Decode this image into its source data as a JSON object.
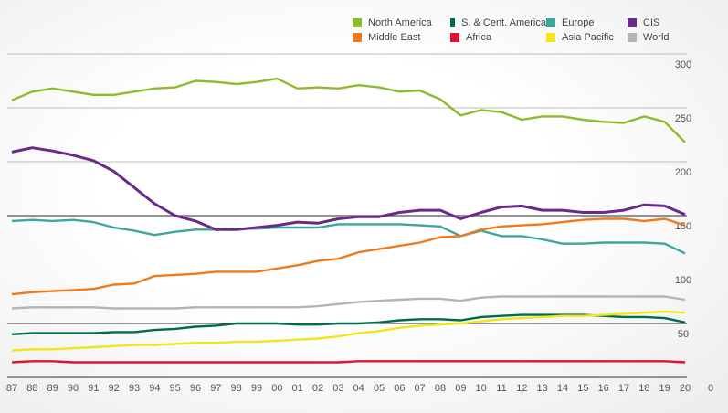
{
  "chart_data": {
    "type": "line",
    "x": [
      "87",
      "88",
      "89",
      "90",
      "91",
      "92",
      "93",
      "94",
      "95",
      "96",
      "97",
      "98",
      "99",
      "00",
      "01",
      "02",
      "03",
      "04",
      "05",
      "06",
      "07",
      "08",
      "09",
      "10",
      "11",
      "12",
      "13",
      "14",
      "15",
      "16",
      "17",
      "18",
      "19",
      "20"
    ],
    "x_end_label": "0",
    "ylim": [
      0,
      300
    ],
    "yticks": [
      50,
      100,
      150,
      200,
      250,
      300
    ],
    "y_axis_side": "right",
    "grid": true,
    "legend_position": "top-right",
    "series": [
      {
        "name": "North America",
        "color": "#8dbb2c",
        "values": [
          257,
          265,
          268,
          265,
          262,
          262,
          265,
          268,
          269,
          275,
          274,
          272,
          274,
          277,
          268,
          269,
          268,
          271,
          269,
          265,
          266,
          258,
          243,
          248,
          246,
          239,
          242,
          242,
          239,
          237,
          236,
          242,
          237,
          218
        ]
      },
      {
        "name": "S. & Cent. America",
        "color": "#006a4e",
        "values": [
          40,
          41,
          41,
          41,
          41,
          42,
          42,
          44,
          45,
          47,
          48,
          50,
          50,
          50,
          49,
          49,
          50,
          50,
          51,
          53,
          54,
          54,
          53,
          56,
          57,
          58,
          58,
          58,
          58,
          57,
          56,
          56,
          55,
          51
        ]
      },
      {
        "name": "Europe",
        "color": "#3ba89a",
        "values": [
          145,
          146,
          145,
          146,
          144,
          139,
          136,
          132,
          135,
          137,
          137,
          138,
          138,
          139,
          139,
          139,
          142,
          142,
          142,
          142,
          141,
          140,
          131,
          136,
          131,
          131,
          128,
          124,
          124,
          125,
          125,
          125,
          124,
          115
        ]
      },
      {
        "name": "CIS",
        "color": "#6a2a8a",
        "values": [
          209,
          213,
          210,
          206,
          201,
          191,
          176,
          161,
          150,
          145,
          137,
          137,
          139,
          141,
          144,
          143,
          147,
          149,
          149,
          153,
          155,
          155,
          147,
          153,
          158,
          159,
          155,
          155,
          153,
          153,
          155,
          160,
          159,
          151
        ]
      },
      {
        "name": "Middle East",
        "color": "#ee7a1c",
        "values": [
          77,
          79,
          80,
          81,
          82,
          86,
          87,
          94,
          95,
          96,
          98,
          98,
          98,
          101,
          104,
          108,
          110,
          116,
          119,
          122,
          125,
          130,
          131,
          137,
          140,
          141,
          142,
          144,
          146,
          147,
          147,
          145,
          147,
          141
        ]
      },
      {
        "name": "Africa",
        "color": "#e2122e",
        "values": [
          14,
          15,
          15,
          14,
          14,
          14,
          14,
          14,
          14,
          14,
          14,
          14,
          14,
          14,
          14,
          14,
          14,
          15,
          15,
          15,
          15,
          15,
          15,
          15,
          15,
          15,
          15,
          15,
          15,
          15,
          15,
          15,
          15,
          14
        ]
      },
      {
        "name": "Asia Pacific",
        "color": "#f2e51a",
        "values": [
          25,
          26,
          26,
          27,
          28,
          29,
          30,
          30,
          31,
          32,
          32,
          33,
          33,
          34,
          35,
          36,
          38,
          41,
          43,
          46,
          48,
          49,
          50,
          52,
          54,
          55,
          56,
          57,
          57,
          58,
          59,
          60,
          61,
          60
        ]
      },
      {
        "name": "World",
        "color": "#b4b4b4",
        "values": [
          64,
          65,
          65,
          65,
          65,
          64,
          64,
          64,
          64,
          65,
          65,
          65,
          65,
          65,
          65,
          66,
          68,
          70,
          71,
          72,
          73,
          73,
          71,
          74,
          75,
          75,
          75,
          75,
          75,
          75,
          75,
          75,
          75,
          72
        ]
      }
    ]
  }
}
